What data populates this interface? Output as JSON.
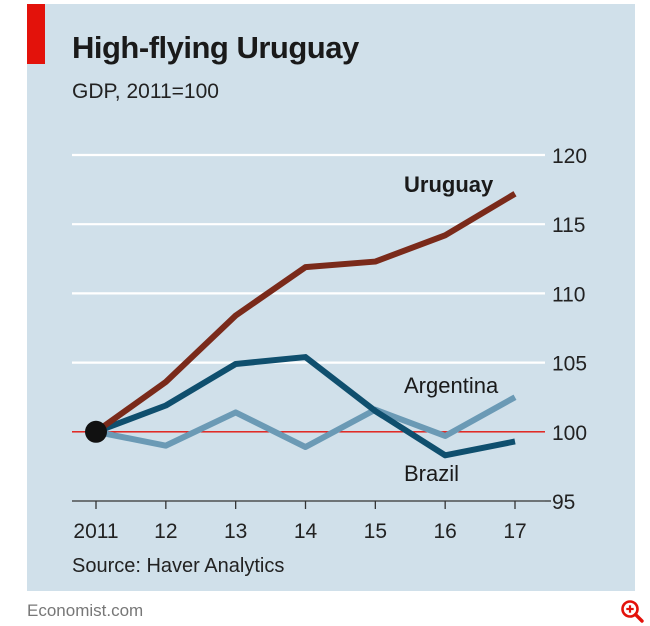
{
  "header": {
    "title": "High-flying Uruguay",
    "subtitle": "GDP, 2011=100"
  },
  "footer": {
    "source": "Source: Haver Analytics",
    "brand": "Economist.com",
    "zoom_icon": "zoom-in-icon"
  },
  "colors": {
    "background": "#d0e0ea",
    "accent": "#e3120b",
    "uruguay": "#7a2a1a",
    "argentina": "#6b9ab5",
    "brazil": "#0f4f6e",
    "gridline": "#ffffff",
    "baseline": "#e3120b",
    "start_marker": "#111111"
  },
  "chart_data": {
    "type": "line",
    "title": "High-flying Uruguay",
    "subtitle": "GDP, 2011=100",
    "x": [
      2011,
      2012,
      2013,
      2014,
      2015,
      2016,
      2017
    ],
    "x_tick_labels": [
      "2011",
      "12",
      "13",
      "14",
      "15",
      "16",
      "17"
    ],
    "xlim": [
      2011,
      2017
    ],
    "ylim": [
      95,
      120
    ],
    "y_ticks": [
      95,
      100,
      105,
      110,
      115,
      120
    ],
    "y_tick_labels": [
      "95",
      "100",
      "105",
      "110",
      "115",
      "120"
    ],
    "y_axis_side": "right",
    "grid": true,
    "baseline": 100,
    "series": [
      {
        "name": "Uruguay",
        "label": "Uruguay",
        "values": [
          100,
          103.6,
          108.4,
          111.9,
          112.3,
          114.2,
          117.2
        ]
      },
      {
        "name": "Argentina",
        "label": "Argentina",
        "values": [
          100,
          99.0,
          101.4,
          98.9,
          101.6,
          99.7,
          102.5
        ]
      },
      {
        "name": "Brazil",
        "label": "Brazil",
        "values": [
          100,
          101.9,
          104.9,
          105.4,
          101.5,
          98.3,
          99.3
        ]
      }
    ],
    "source": "Source: Haver Analytics"
  }
}
